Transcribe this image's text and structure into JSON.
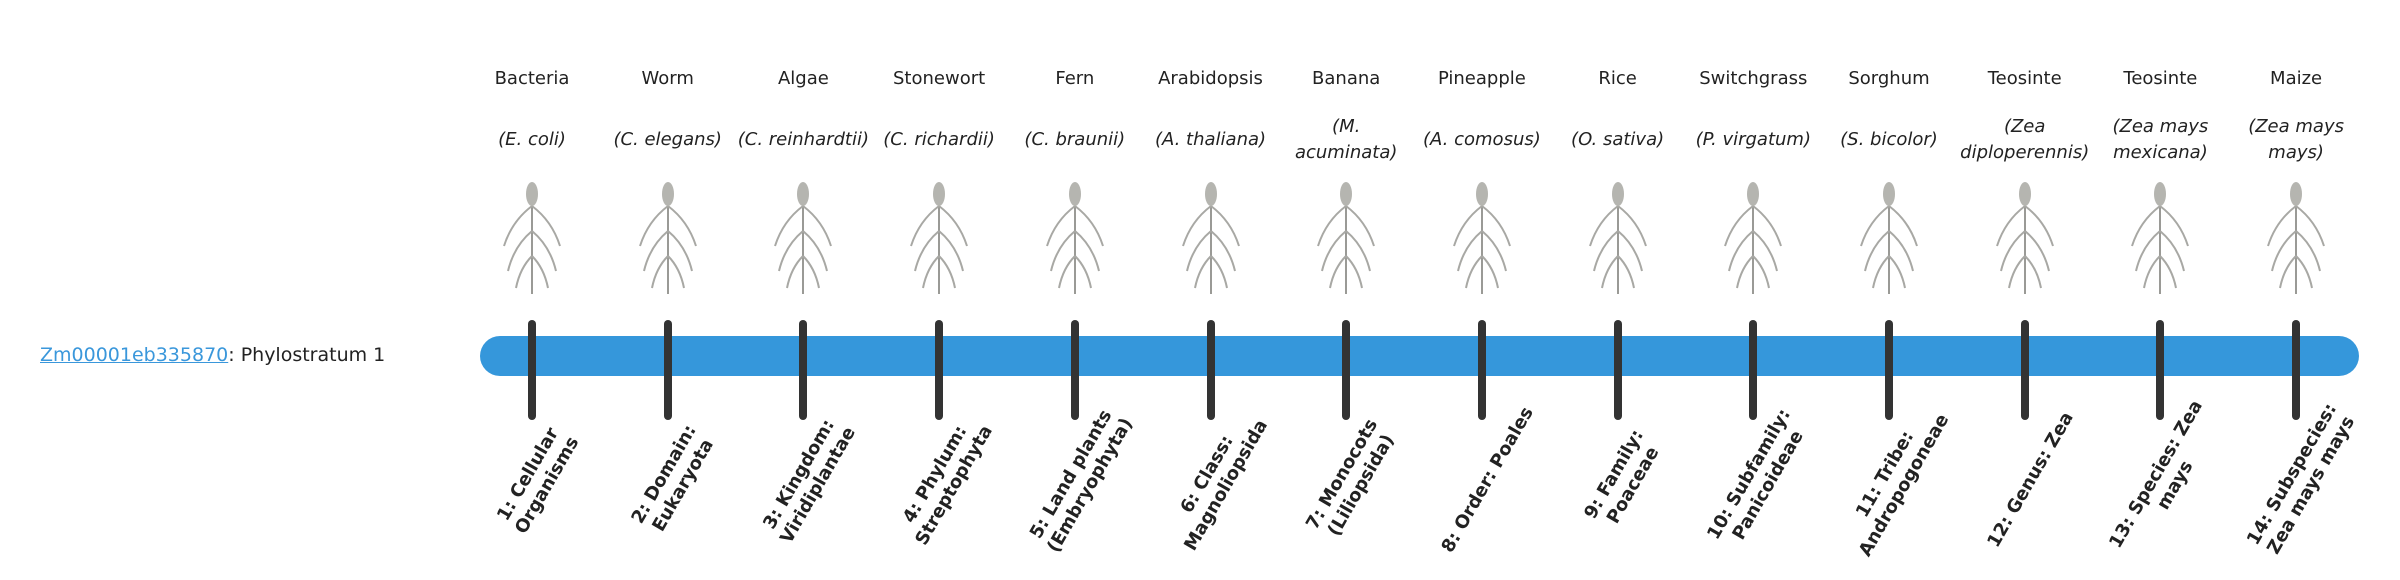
{
  "gene": {
    "id": "Zm00001eb335870",
    "suffix": ": Phylostratum 1"
  },
  "colors": {
    "bar": "#3597db",
    "tick": "#333333",
    "link": "#3a97db"
  },
  "strata": [
    {
      "common": "Bacteria",
      "scientific": "(E. coli)",
      "rank": "1: Cellular Organisms",
      "icon": "bacteria-icon"
    },
    {
      "common": "Worm",
      "scientific": "(C. elegans)",
      "rank": "2: Domain: Eukaryota",
      "icon": "worm-icon"
    },
    {
      "common": "Algae",
      "scientific": "(C. reinhardtii)",
      "rank": "3: Kingdom: Viridiplantae",
      "icon": "algae-icon"
    },
    {
      "common": "Stonewort",
      "scientific": "(C. richardii)",
      "rank": "4: Phylum: Streptophyta",
      "icon": "stonewort-icon"
    },
    {
      "common": "Fern",
      "scientific": "(C. braunii)",
      "rank": "5: Land plants (Embryophyta)",
      "icon": "fern-icon"
    },
    {
      "common": "Arabidopsis",
      "scientific": "(A. thaliana)",
      "rank": "6: Class: Magnoliopsida",
      "icon": "arabidopsis-icon"
    },
    {
      "common": "Banana",
      "scientific": "(M. acuminata)",
      "rank": "7: Monocots (Liliopsida)",
      "icon": "banana-icon"
    },
    {
      "common": "Pineapple",
      "scientific": "(A. comosus)",
      "rank": "8: Order: Poales",
      "icon": "pineapple-icon"
    },
    {
      "common": "Rice",
      "scientific": "(O. sativa)",
      "rank": "9: Family: Poaceae",
      "icon": "rice-icon"
    },
    {
      "common": "Switchgrass",
      "scientific": "(P. virgatum)",
      "rank": "10: Subfamily: Panicoideae",
      "icon": "switchgrass-icon"
    },
    {
      "common": "Sorghum",
      "scientific": "(S. bicolor)",
      "rank": "11: Tribe: Andropogoneae",
      "icon": "sorghum-icon"
    },
    {
      "common": "Teosinte",
      "scientific": "(Zea diploperennis)",
      "rank": "12: Genus: Zea",
      "icon": "teosinte-icon"
    },
    {
      "common": "Teosinte",
      "scientific": "(Zea mays mexicana)",
      "rank": "13: Species: Zea mays",
      "icon": "teosinte-mexicana-icon"
    },
    {
      "common": "Maize",
      "scientific": "(Zea mays mays)",
      "rank": "14: Subspecies: Zea mays mays",
      "icon": "maize-icon"
    }
  ]
}
